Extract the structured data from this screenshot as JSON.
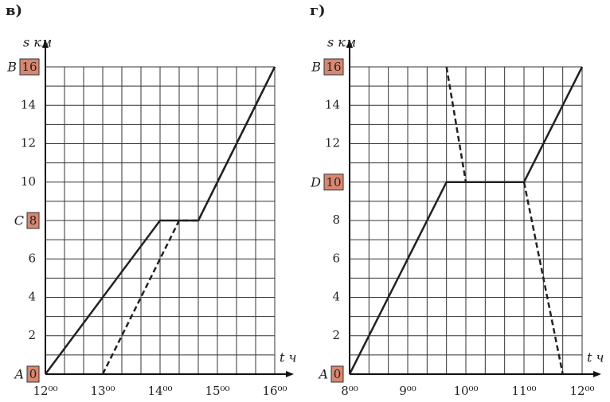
{
  "chart_data": [
    {
      "type": "line",
      "title": "в)",
      "x_label": "t ч",
      "y_label": "s км",
      "xlim": [
        12,
        16
      ],
      "ylim": [
        0,
        16
      ],
      "xticks": [
        {
          "value": 12,
          "label": "12⁰⁰"
        },
        {
          "value": 13,
          "label": "13⁰⁰"
        },
        {
          "value": 14,
          "label": "14⁰⁰"
        },
        {
          "value": 15,
          "label": "15⁰⁰"
        },
        {
          "value": 16,
          "label": "16⁰⁰"
        }
      ],
      "yticks": [
        0,
        2,
        4,
        6,
        8,
        10,
        12,
        14,
        16
      ],
      "x_minor_divisions": 3,
      "y_minor_divisions": 2,
      "grid": true,
      "point_labels": [
        {
          "value": 0,
          "label": "A"
        },
        {
          "value": 8,
          "label": "C"
        },
        {
          "value": 16,
          "label": "B"
        }
      ],
      "series": [
        {
          "color": "#222222",
          "dashed": false,
          "x": [
            12,
            14,
            14.667,
            16
          ],
          "values": [
            0,
            8,
            8,
            16
          ]
        },
        {
          "color": "#222222",
          "dashed": true,
          "x": [
            13,
            14.333,
            14.667,
            16
          ],
          "values": [
            0,
            8,
            8,
            16
          ]
        }
      ]
    },
    {
      "type": "line",
      "title": "г)",
      "x_label": "t ч",
      "y_label": "s км",
      "xlim": [
        8,
        12
      ],
      "ylim": [
        0,
        16
      ],
      "xticks": [
        {
          "value": 8,
          "label": "8⁰⁰"
        },
        {
          "value": 9,
          "label": "9⁰⁰"
        },
        {
          "value": 10,
          "label": "10⁰⁰"
        },
        {
          "value": 11,
          "label": "11⁰⁰"
        },
        {
          "value": 12,
          "label": "12⁰⁰"
        }
      ],
      "yticks": [
        0,
        2,
        4,
        6,
        8,
        10,
        12,
        14,
        16
      ],
      "x_minor_divisions": 3,
      "y_minor_divisions": 2,
      "grid": true,
      "point_labels": [
        {
          "value": 0,
          "label": "A"
        },
        {
          "value": 10,
          "label": "D"
        },
        {
          "value": 16,
          "label": "B"
        }
      ],
      "series": [
        {
          "color": "#222222",
          "dashed": false,
          "x": [
            8,
            9.667,
            11,
            12
          ],
          "values": [
            0,
            10,
            10,
            16
          ]
        },
        {
          "color": "#222222",
          "dashed": true,
          "x": [
            9.667,
            10,
            11,
            11.667
          ],
          "values": [
            16,
            10,
            10,
            0
          ]
        }
      ]
    }
  ]
}
